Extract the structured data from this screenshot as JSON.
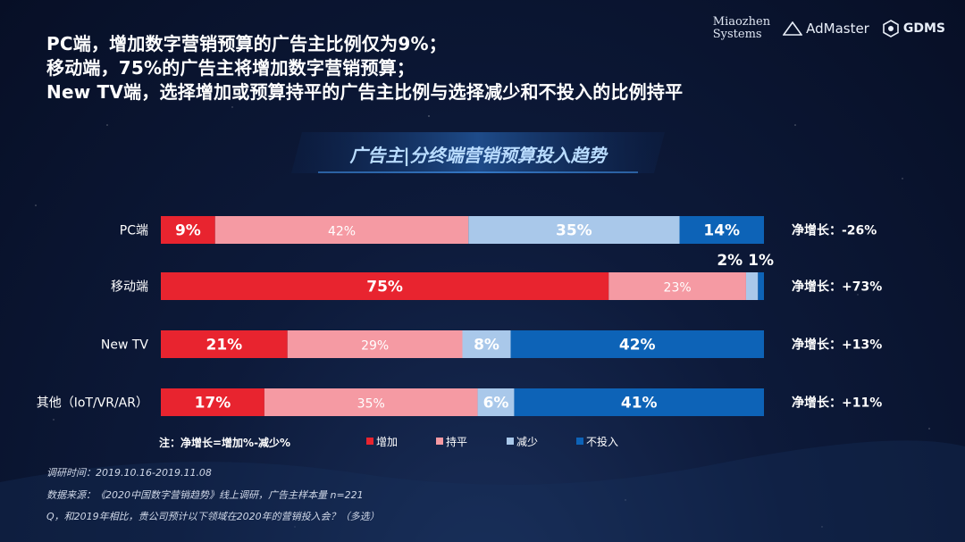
{
  "headline": {
    "line1": "PC端，增加数字营销预算的广告主比例仅为9%；",
    "line2": "移动端，75%的广告主将增加数字营销预算；",
    "line3": "New TV端，选择增加或预算持平的广告主比例与选择减少和不投入的比例持平"
  },
  "logos": {
    "miaozhen_line1": "Miaozhen",
    "miaozhen_line2": "Systems",
    "admaster": "AdMaster",
    "gdms": "GDMS"
  },
  "colors": {
    "increase": "#e8242f",
    "flat": "#f59aa3",
    "decrease": "#a9c8ea",
    "none": "#0d63b7"
  },
  "chart_data": {
    "type": "bar",
    "orientation": "horizontal",
    "stacked": true,
    "title": "广告主|分终端营销预算投入趋势",
    "categories": [
      "PC端",
      "移动端",
      "New TV",
      "其他（IoT/VR/AR）"
    ],
    "series": [
      {
        "name": "增加",
        "values": [
          9,
          75,
          21,
          17
        ]
      },
      {
        "name": "持平",
        "values": [
          42,
          23,
          29,
          35
        ]
      },
      {
        "name": "减少",
        "values": [
          35,
          2,
          8,
          6
        ]
      },
      {
        "name": "不投入",
        "values": [
          14,
          1,
          42,
          41
        ]
      }
    ],
    "data_labels": [
      [
        "9%",
        "42%",
        "35%",
        "14%"
      ],
      [
        "75%",
        "23%",
        "2%",
        "1%"
      ],
      [
        "21%",
        "29%",
        "8%",
        "42%"
      ],
      [
        "17%",
        "35%",
        "6%",
        "41%"
      ]
    ],
    "net_growth": [
      "净增长：-26%",
      "净增长：+73%",
      "净增长：+13%",
      "净增长：+11%"
    ],
    "legend_position": "bottom",
    "note": "注：净增长=增加%-减少%"
  },
  "footer": {
    "period": "调研时间：2019.10.16-2019.11.08",
    "source": "数据来源：《2020中国数字营销趋势》线上调研，广告主样本量 n=221",
    "question": "Q，和2019年相比，贵公司预计以下领域在2020年的营销投入会？（多选）"
  }
}
